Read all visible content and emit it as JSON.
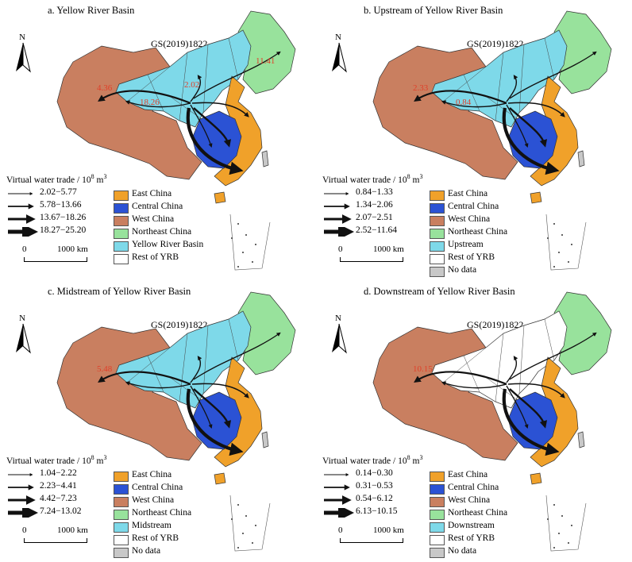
{
  "colors": {
    "east": "#f0a12a",
    "central": "#2b52d4",
    "west": "#c97f60",
    "northeast": "#98e29c",
    "basin": "#7ed9e9",
    "rest": "#ffffff",
    "nodata": "#c8c8c8",
    "flow_label": "#e0402a"
  },
  "north_label": "N",
  "legend_title": "Virtual water trade / 10",
  "legend_unit_exp": "8",
  "legend_unit_tail": " m",
  "legend_unit_exp2": "3",
  "scale_zero": "0",
  "scale_distance": "1000 km",
  "panels": [
    {
      "title": "a. Yellow River Basin",
      "code": "GS(2019)1822",
      "trade_classes": [
        "2.02−5.77",
        "5.78−13.66",
        "13.67−18.26",
        "18.27−25.20"
      ],
      "regions": [
        "East China",
        "Central China",
        "West China",
        "Northeast China",
        "Yellow River Basin",
        "Rest of YRB"
      ],
      "flow_labels": [
        "4.36",
        "18.26",
        "2.02",
        "11.41"
      ]
    },
    {
      "title": "b. Upstream of Yellow River Basin",
      "code": "GS(2019)1822",
      "trade_classes": [
        "0.84−1.33",
        "1.34−2.06",
        "2.07−2.51",
        "2.52−11.64"
      ],
      "regions": [
        "East China",
        "Central China",
        "West China",
        "Northeast China",
        "Upstream",
        "Rest of YRB",
        "No data"
      ],
      "flow_labels": [
        "2.33",
        "0.84"
      ]
    },
    {
      "title": "c. Midstream of  Yellow River Basin",
      "code": "GS(2019)1822",
      "trade_classes": [
        "1.04−2.22",
        "2.23−4.41",
        "4.42−7.23",
        "7.24−13.02"
      ],
      "regions": [
        "East China",
        "Central China",
        "West China",
        "Northeast China",
        "Midstream",
        "Rest of YRB",
        "No data"
      ],
      "flow_labels": [
        "5.48"
      ]
    },
    {
      "title": "d. Downstream of Yellow River Basin",
      "code": "GS(2019)1822",
      "trade_classes": [
        "0.14−0.30",
        "0.31−0.53",
        "0.54−6.12",
        "6.13−10.15"
      ],
      "regions": [
        "East China",
        "Central China",
        "West China",
        "Northeast China",
        "Downstream",
        "Rest of YRB",
        "No data"
      ],
      "flow_labels": [
        "10.15"
      ]
    }
  ]
}
